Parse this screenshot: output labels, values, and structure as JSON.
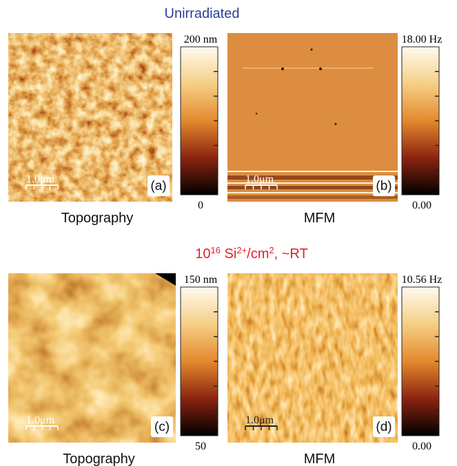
{
  "rows": [
    {
      "title": {
        "parts": [
          "Unirradiated"
        ]
      },
      "panels": [
        {
          "label": "(a)",
          "scale_bar": "1.0μm",
          "colorbar": {
            "max": "200 nm",
            "min": "0"
          },
          "caption": "Topography"
        },
        {
          "label": "(b)",
          "scale_bar": "1.0μm",
          "colorbar": {
            "max": "18.00 Hz",
            "min": "0.00"
          },
          "caption": "MFM"
        }
      ]
    },
    {
      "title": {
        "parts": [
          "10",
          "16",
          " Si",
          "2+",
          "/cm",
          "2",
          ", ~RT"
        ]
      },
      "panels": [
        {
          "label": "(c)",
          "scale_bar": "1.0μm",
          "colorbar": {
            "max": "150 nm",
            "min": "50"
          },
          "caption": "Topography"
        },
        {
          "label": "(d)",
          "scale_bar": "1.0μm",
          "colorbar": {
            "max": "10.56 Hz",
            "min": "0.00"
          },
          "caption": "MFM"
        }
      ]
    }
  ]
}
